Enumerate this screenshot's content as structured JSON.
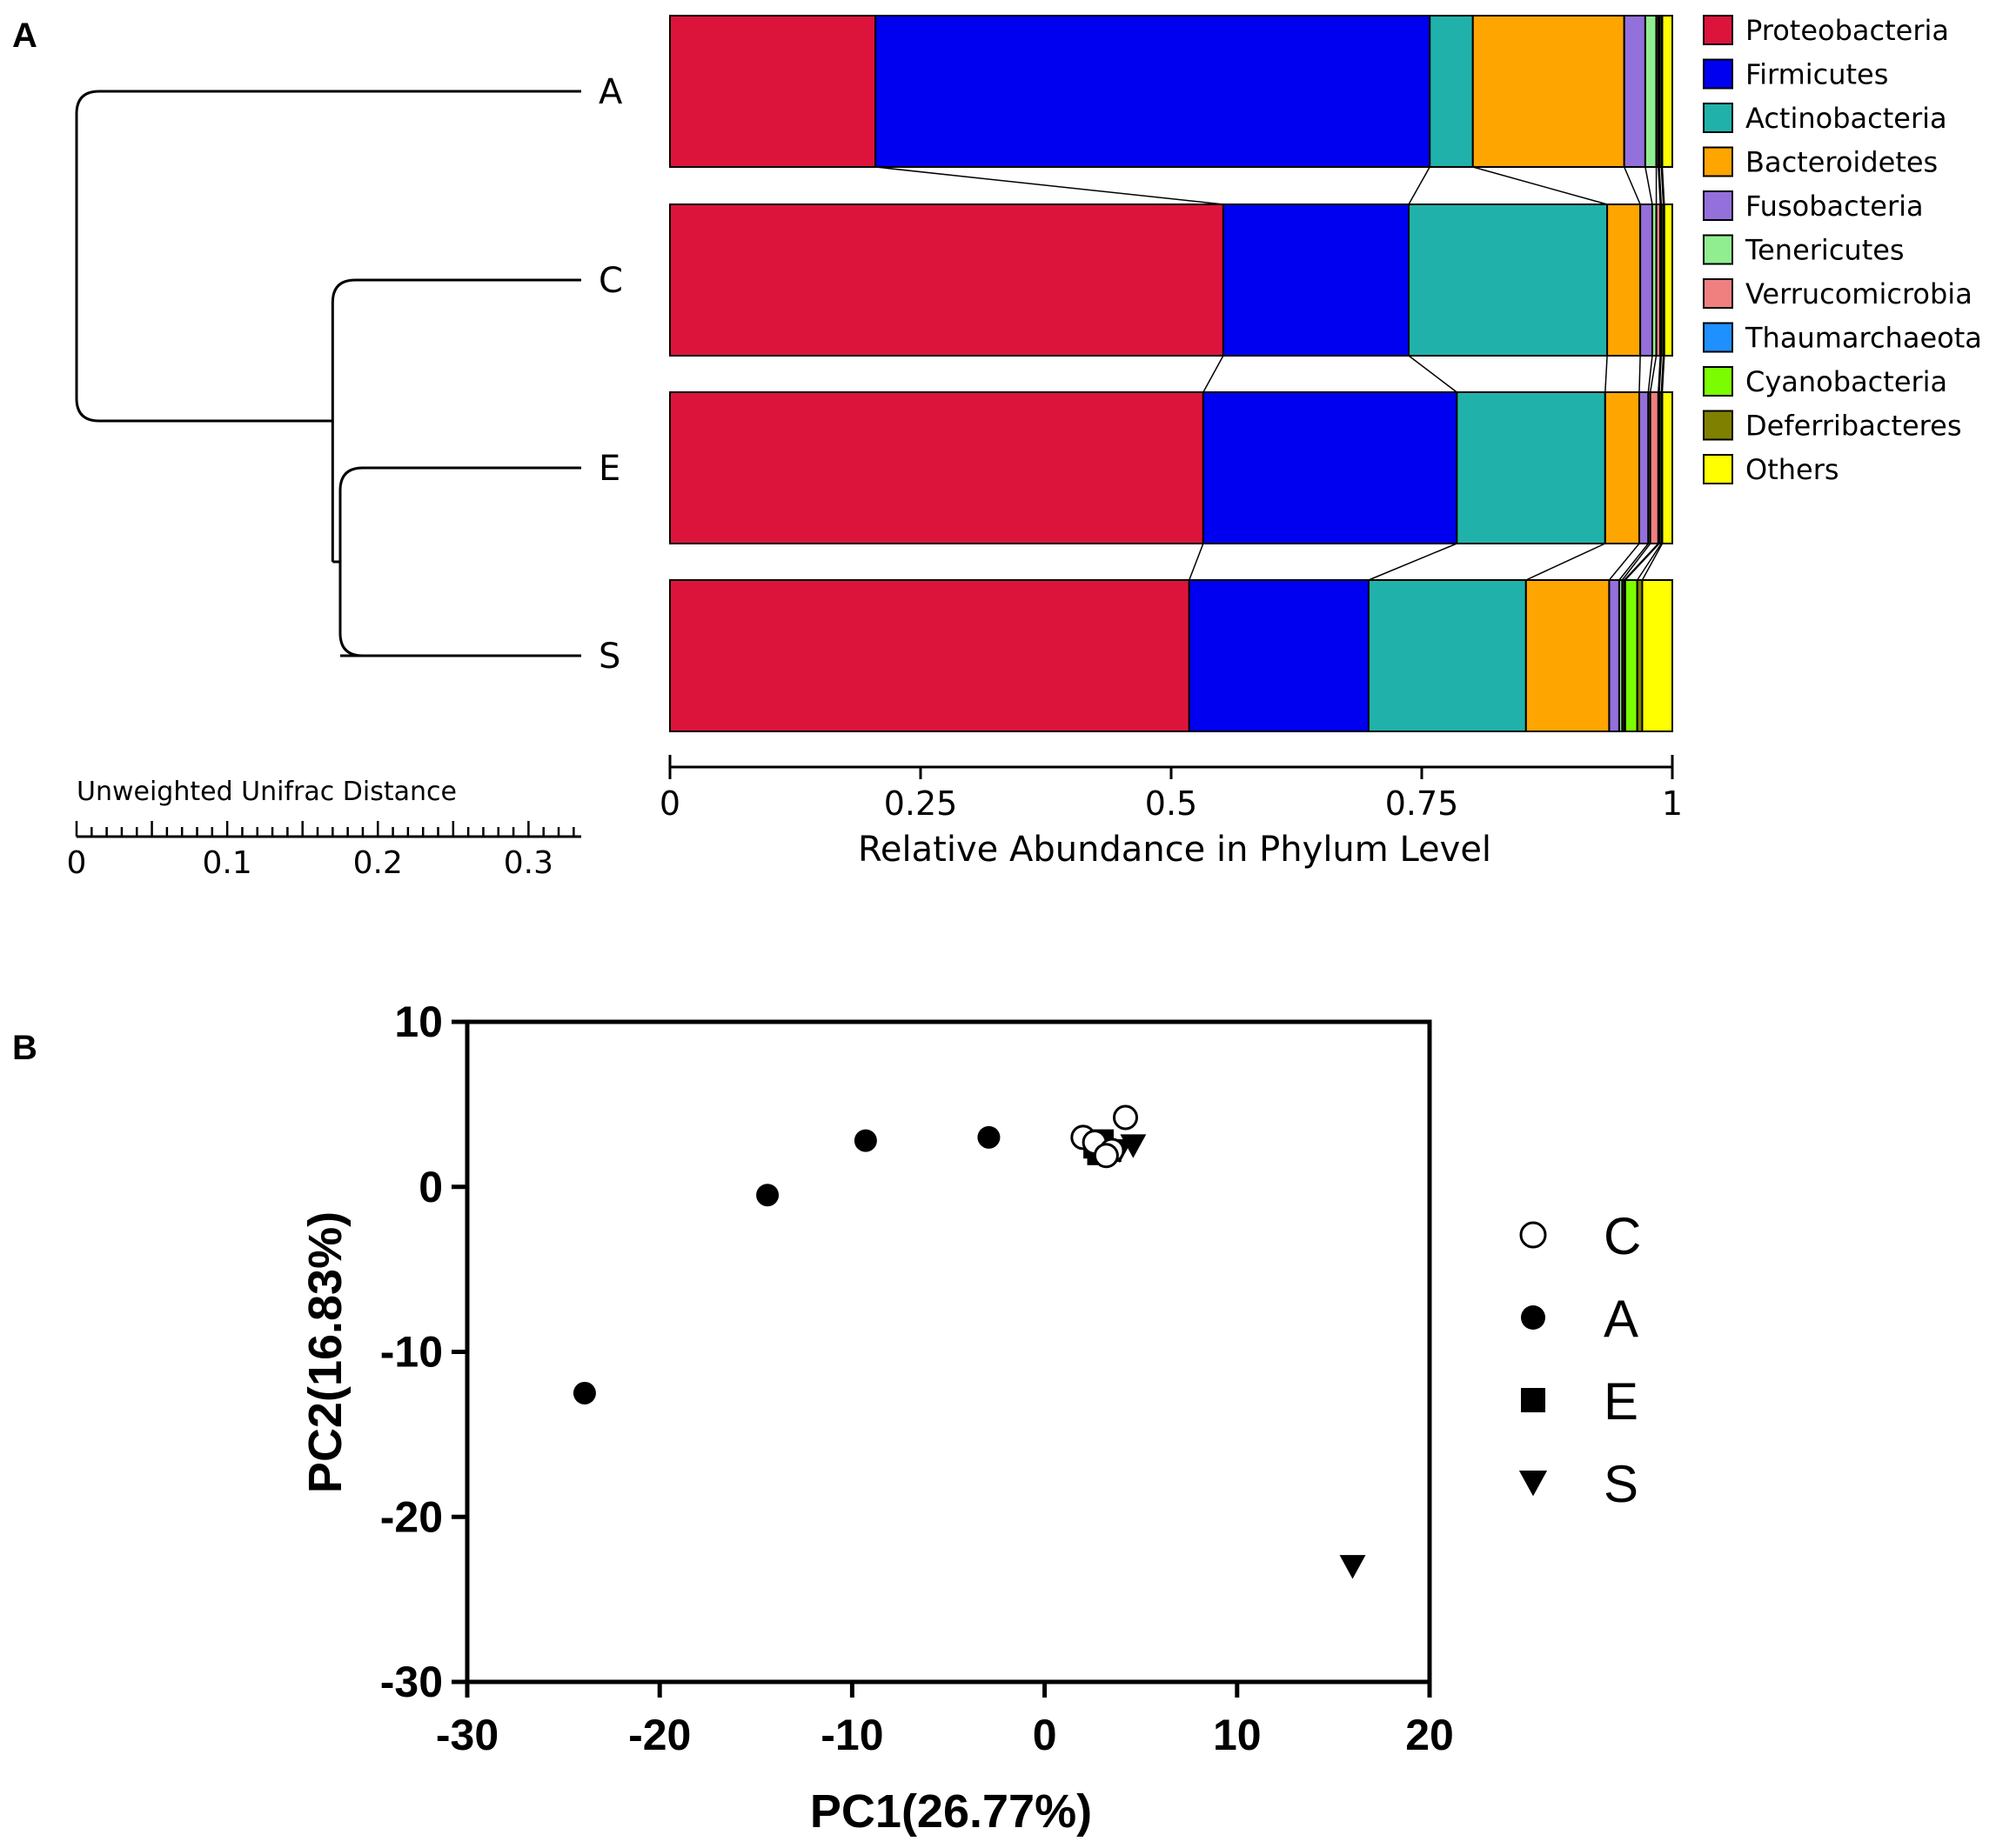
{
  "panels": {
    "a": "A",
    "b": "B"
  },
  "chart_data": [
    {
      "type": "bar",
      "orientation": "horizontal-stacked",
      "xlabel": "Relative Abundance in Phylum Level",
      "xlim": [
        0,
        1
      ],
      "xticks": [
        "0",
        "0.25",
        "0.5",
        "0.75",
        "1"
      ],
      "categories": [
        "A",
        "C",
        "E",
        "S"
      ],
      "legend_position": "right",
      "series": [
        {
          "name": "Proteobacteria",
          "color": "#DC143C",
          "values": [
            0.205,
            0.552,
            0.532,
            0.518
          ]
        },
        {
          "name": "Firmicutes",
          "color": "#0000F0",
          "values": [
            0.553,
            0.185,
            0.253,
            0.179
          ]
        },
        {
          "name": "Actinobacteria",
          "color": "#20B2AA",
          "values": [
            0.043,
            0.198,
            0.148,
            0.157
          ]
        },
        {
          "name": "Bacteroidetes",
          "color": "#FFA500",
          "values": [
            0.151,
            0.033,
            0.034,
            0.083
          ]
        },
        {
          "name": "Fusobacteria",
          "color": "#9370DB",
          "values": [
            0.021,
            0.012,
            0.009,
            0.01
          ]
        },
        {
          "name": "Tenericutes",
          "color": "#90EE90",
          "values": [
            0.011,
            0.004,
            0.002,
            0.003
          ]
        },
        {
          "name": "Verrucomicrobia",
          "color": "#F08080",
          "values": [
            0.002,
            0.004,
            0.008,
            0.002
          ]
        },
        {
          "name": "Thaumarchaeota",
          "color": "#1E90FF",
          "values": [
            0.001,
            0.001,
            0.001,
            0.001
          ]
        },
        {
          "name": "Cyanobacteria",
          "color": "#7CFC00",
          "values": [
            0.002,
            0.002,
            0.002,
            0.012
          ]
        },
        {
          "name": "Deferribacteres",
          "color": "#808000",
          "values": [
            0.001,
            0.001,
            0.001,
            0.005
          ]
        },
        {
          "name": "Others",
          "color": "#FFFF00",
          "values": [
            0.01,
            0.008,
            0.01,
            0.03
          ]
        }
      ],
      "dendrogram": {
        "title": "Unweighted Unifrac Distance",
        "xticks": [
          "0",
          "0.1",
          "0.2",
          "0.3"
        ],
        "xlim": [
          0,
          0.335
        ],
        "leaves": [
          "A",
          "C",
          "E",
          "S"
        ],
        "merges": [
          {
            "children": [
              "E",
              "S"
            ],
            "height": 0.175
          },
          {
            "children": [
              "C",
              "E+S"
            ],
            "height": 0.17
          },
          {
            "children": [
              "A",
              "C+E+S"
            ],
            "height": 0.0
          }
        ]
      }
    },
    {
      "type": "scatter",
      "xlabel": "PC1(26.77%)",
      "ylabel": "PC2(16.83%)",
      "xlim": [
        -30,
        20
      ],
      "ylim": [
        -30,
        10
      ],
      "xticks": [
        "-30",
        "-20",
        "-10",
        "0",
        "10",
        "20"
      ],
      "yticks": [
        "-30",
        "-20",
        "-10",
        "0",
        "10"
      ],
      "legend_position": "right",
      "series": [
        {
          "name": "C",
          "marker": "circle-open",
          "points": [
            [
              2.0,
              3.0
            ],
            [
              2.6,
              2.7
            ],
            [
              3.5,
              2.2
            ],
            [
              4.2,
              4.2
            ],
            [
              3.2,
              1.9
            ]
          ]
        },
        {
          "name": "A",
          "marker": "circle-filled",
          "points": [
            [
              -23.9,
              -12.5
            ],
            [
              -14.4,
              -0.5
            ],
            [
              -9.3,
              2.8
            ],
            [
              -2.9,
              3.0
            ]
          ]
        },
        {
          "name": "E",
          "marker": "square",
          "points": [
            [
              2.6,
              2.4
            ],
            [
              3.0,
              2.8
            ],
            [
              3.4,
              2.2
            ],
            [
              2.8,
              2.0
            ]
          ]
        },
        {
          "name": "S",
          "marker": "triangle-down",
          "points": [
            [
              4.6,
              2.5
            ],
            [
              3.9,
              2.2
            ],
            [
              16.0,
              -23.0
            ]
          ]
        }
      ]
    }
  ]
}
